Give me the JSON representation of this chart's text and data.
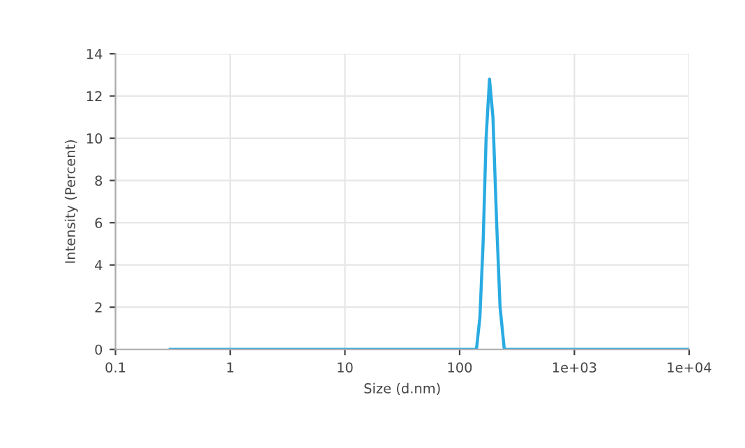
{
  "chart_data": {
    "type": "line",
    "xlabel": "Size (d.nm)",
    "ylabel": "Intensity (Percent)",
    "log": "x",
    "xlim": [
      0.1,
      10000
    ],
    "xticks": [
      0.1,
      1,
      10,
      100,
      {
        "value": 1000,
        "label": "1e+03"
      },
      {
        "value": 10000,
        "label": "1e+04"
      }
    ],
    "ylim": [
      0,
      14
    ],
    "yticks": [
      0,
      2,
      4,
      6,
      8,
      10,
      12,
      14
    ],
    "grid": true,
    "marker": "none",
    "line_style": "solid",
    "series": [
      {
        "color": "#29abe2",
        "x": [
          0.3,
          140,
          150,
          160,
          170,
          182,
          195,
          210,
          225,
          245,
          10000
        ],
        "values": [
          0,
          0,
          1.5,
          5,
          10,
          12.8,
          11,
          6,
          2,
          0,
          0
        ]
      }
    ]
  }
}
